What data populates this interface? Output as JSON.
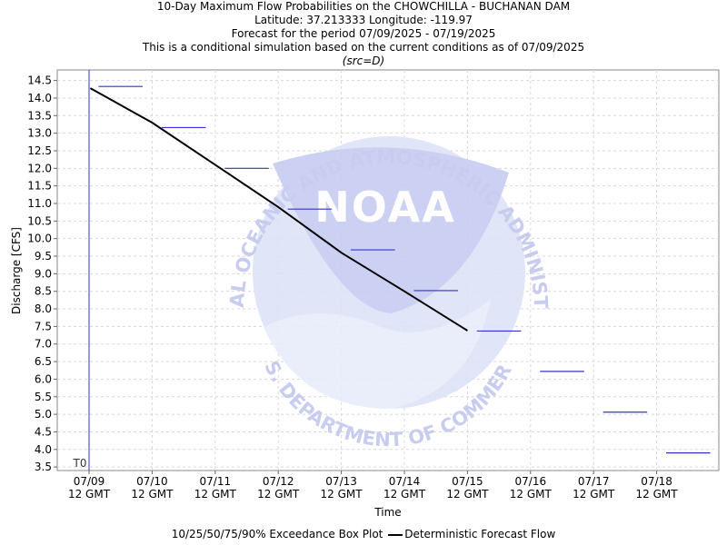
{
  "titles": {
    "line1": "10-Day Maximum Flow Probabilities on the CHOWCHILLA - BUCHANAN DAM",
    "line2": "Latitude: 37.213333 Longitude: -119.97",
    "line3": "Forecast for the period 07/09/2025 - 07/19/2025",
    "line4": "This is a conditional simulation based on the current conditions as of 07/09/2025",
    "line5": "(src=D)"
  },
  "watermark": {
    "logo_text": "NOAA",
    "ring_top": "NATIONAL OCEANIC AND ATMOSPHERIC ADMINISTRATION",
    "ring_bottom": "U.S. DEPARTMENT OF COMMERCE"
  },
  "legend": {
    "box_plot_label": "10/25/50/75/90% Exceedance Box Plot",
    "deterministic_label": "Deterministic Forecast Flow"
  },
  "colors": {
    "box_plot": "#3333cc",
    "deterministic": "#000000",
    "t0_line": "#3333cc",
    "grid": "#d8d8d8",
    "watermark": "#c8ccee"
  },
  "chart_data": {
    "type": "line",
    "xlabel": "Time",
    "ylabel": "Discharge [CFS]",
    "ylim": [
      3.4,
      14.8
    ],
    "grid": true,
    "t0_label": "T0",
    "x_ticks": [
      {
        "date": "07/09",
        "sub": "12 GMT"
      },
      {
        "date": "07/10",
        "sub": "12 GMT"
      },
      {
        "date": "07/11",
        "sub": "12 GMT"
      },
      {
        "date": "07/12",
        "sub": "12 GMT"
      },
      {
        "date": "07/13",
        "sub": "12 GMT"
      },
      {
        "date": "07/14",
        "sub": "12 GMT"
      },
      {
        "date": "07/15",
        "sub": "12 GMT"
      },
      {
        "date": "07/16",
        "sub": "12 GMT"
      },
      {
        "date": "07/17",
        "sub": "12 GMT"
      },
      {
        "date": "07/18",
        "sub": "12 GMT"
      }
    ],
    "y_ticks": [
      "3.5",
      "4.0",
      "4.5",
      "5.0",
      "5.5",
      "6.0",
      "6.5",
      "7.0",
      "7.5",
      "8.0",
      "8.5",
      "9.0",
      "9.5",
      "10.0",
      "10.5",
      "11.0",
      "11.5",
      "12.0",
      "12.5",
      "13.0",
      "13.5",
      "14.0",
      "14.5"
    ],
    "series": [
      {
        "name": "10/25/50/75/90% Exceedance Box Plot",
        "segments": [
          {
            "x_start": 0.15,
            "x_end": 0.85,
            "y": 14.33
          },
          {
            "x_start": 1.15,
            "x_end": 1.85,
            "y": 13.16
          },
          {
            "x_start": 2.15,
            "x_end": 2.85,
            "y": 12.0
          },
          {
            "x_start": 3.15,
            "x_end": 3.85,
            "y": 10.84
          },
          {
            "x_start": 4.15,
            "x_end": 4.85,
            "y": 9.68
          },
          {
            "x_start": 5.15,
            "x_end": 5.85,
            "y": 8.52
          },
          {
            "x_start": 6.15,
            "x_end": 6.85,
            "y": 7.37
          },
          {
            "x_start": 7.15,
            "x_end": 7.85,
            "y": 6.22
          },
          {
            "x_start": 8.15,
            "x_end": 8.85,
            "y": 5.06
          },
          {
            "x_start": 9.15,
            "x_end": 9.85,
            "y": 3.9
          }
        ]
      },
      {
        "name": "Deterministic Forecast Flow",
        "x": [
          0.02,
          1.0,
          2.0,
          3.0,
          4.0,
          5.0,
          6.0
        ],
        "y": [
          14.28,
          13.3,
          12.1,
          10.9,
          9.6,
          8.5,
          7.38
        ]
      }
    ]
  }
}
